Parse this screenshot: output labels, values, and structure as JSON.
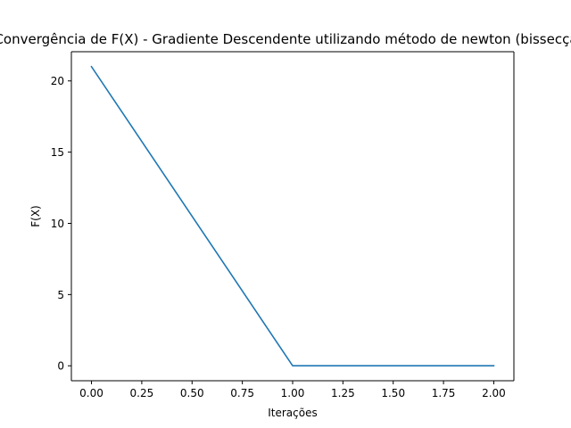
{
  "chart_data": {
    "type": "line",
    "title": "Convergência de F(X) - Gradiente Descendente utilizando método de newton (bissecção)",
    "xlabel": "Iterações",
    "ylabel": "F(X)",
    "x": [
      0,
      1,
      2
    ],
    "series": [
      {
        "values": [
          21,
          0,
          0
        ],
        "color": "#1f77b4"
      }
    ],
    "xlim": [
      -0.1,
      2.1
    ],
    "ylim": [
      -1.05,
      22.05
    ],
    "xticks": [
      0.0,
      0.25,
      0.5,
      0.75,
      1.0,
      1.25,
      1.5,
      1.75,
      2.0
    ],
    "xtick_labels": [
      "0.00",
      "0.25",
      "0.50",
      "0.75",
      "1.00",
      "1.25",
      "1.50",
      "1.75",
      "2.00"
    ],
    "yticks": [
      0,
      5,
      10,
      15,
      20
    ],
    "ytick_labels": [
      "0",
      "5",
      "10",
      "15",
      "20"
    ],
    "grid": false,
    "legend": "none"
  }
}
